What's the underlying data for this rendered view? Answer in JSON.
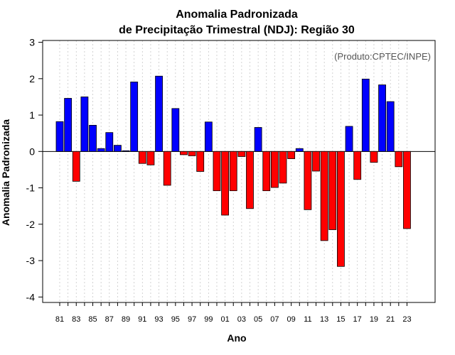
{
  "chart_data": {
    "type": "bar",
    "title": "Anomalia Padronizada",
    "subtitle": "de Precipitação Trimestral (NDJ): Região 30",
    "xlabel": "Ano",
    "ylabel": "Anomalia Padronizada",
    "annotation": "(Produto:CPTEC/INPE)",
    "ylim": [
      -4.15,
      3.05
    ],
    "yticks": [
      3,
      2,
      1,
      0,
      -1,
      -2,
      -3,
      -4
    ],
    "ytick_labels": [
      "3",
      "2",
      "1",
      "0",
      "-1",
      "-2",
      "-3",
      "-4"
    ],
    "categories": [
      "81",
      "82",
      "83",
      "84",
      "85",
      "86",
      "87",
      "88",
      "89",
      "90",
      "91",
      "92",
      "93",
      "94",
      "95",
      "96",
      "97",
      "98",
      "99",
      "00",
      "01",
      "02",
      "03",
      "04",
      "05",
      "06",
      "07",
      "08",
      "09",
      "10",
      "11",
      "12",
      "13",
      "14",
      "15",
      "16",
      "17",
      "18",
      "19",
      "20",
      "21",
      "22",
      "23"
    ],
    "xtick_labels": [
      "81",
      "83",
      "85",
      "87",
      "89",
      "91",
      "93",
      "95",
      "97",
      "99",
      "01",
      "03",
      "05",
      "07",
      "09",
      "11",
      "13",
      "15",
      "17",
      "19",
      "21",
      "23"
    ],
    "values": [
      0.82,
      1.46,
      -0.82,
      1.5,
      0.72,
      0.08,
      0.52,
      0.17,
      0.02,
      1.91,
      -0.33,
      -0.37,
      2.07,
      -0.93,
      1.18,
      -0.09,
      -0.12,
      -0.55,
      0.81,
      -1.08,
      -1.75,
      -1.08,
      -0.14,
      -1.57,
      0.66,
      -1.08,
      -0.99,
      -0.87,
      -0.2,
      0.08,
      -1.6,
      -0.54,
      -2.45,
      -2.15,
      -3.16,
      0.69,
      -0.77,
      1.99,
      -0.3,
      1.83,
      1.37,
      -0.42,
      -2.12
    ],
    "colors": {
      "positive": "#0000ff",
      "negative": "#ff0000",
      "border": "#000000"
    },
    "grid": true,
    "zero_line": true
  }
}
